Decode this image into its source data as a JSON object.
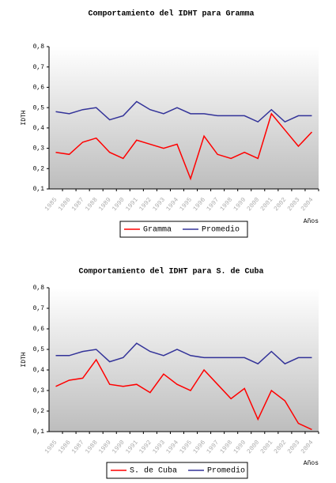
{
  "chart_data": [
    {
      "type": "line",
      "title": "Comportamiento del IDHT para Gramma",
      "y_label": "IDTH",
      "x_label": "Años",
      "categories": [
        "1985",
        "1986",
        "1987",
        "1988",
        "1989",
        "1990",
        "1991",
        "1992",
        "1993",
        "1994",
        "1995",
        "1996",
        "1997",
        "1998",
        "1999",
        "2000",
        "2001",
        "2002",
        "2003",
        "2004"
      ],
      "series": [
        {
          "name": "Gramma",
          "color": "#ff0000",
          "values": [
            0.28,
            0.27,
            0.33,
            0.35,
            0.28,
            0.25,
            0.34,
            0.32,
            0.3,
            0.32,
            0.15,
            0.36,
            0.27,
            0.25,
            0.28,
            0.25,
            0.47,
            0.39,
            0.31,
            0.38
          ]
        },
        {
          "name": "Promedio",
          "color": "#333399",
          "values": [
            0.48,
            0.47,
            0.49,
            0.5,
            0.44,
            0.46,
            0.53,
            0.49,
            0.47,
            0.5,
            0.47,
            0.47,
            0.46,
            0.46,
            0.46,
            0.43,
            0.49,
            0.43,
            0.46,
            0.46
          ]
        }
      ],
      "ylim": [
        0.1,
        0.8
      ],
      "yticks": [
        {
          "value": 0.1,
          "label": "0,1"
        },
        {
          "value": 0.2,
          "label": "0,2"
        },
        {
          "value": 0.3,
          "label": "0,3"
        },
        {
          "value": 0.4,
          "label": "0,4"
        },
        {
          "value": 0.5,
          "label": "0,5"
        },
        {
          "value": 0.6,
          "label": "0,6"
        },
        {
          "value": 0.7,
          "label": "0,7"
        },
        {
          "value": 0.8,
          "label": "0,8"
        }
      ]
    },
    {
      "type": "line",
      "title": "Comportamiento del IDHT para S. de Cuba",
      "y_label": "IDTH",
      "x_label": "Años",
      "categories": [
        "1985",
        "1986",
        "1987",
        "1988",
        "1989",
        "1990",
        "1991",
        "1992",
        "1993",
        "1994",
        "1995",
        "1996",
        "1997",
        "1998",
        "1999",
        "2000",
        "2001",
        "2002",
        "2003",
        "2004"
      ],
      "series": [
        {
          "name": "S. de Cuba",
          "color": "#ff0000",
          "values": [
            0.32,
            0.35,
            0.36,
            0.45,
            0.33,
            0.32,
            0.33,
            0.29,
            0.38,
            0.33,
            0.3,
            0.4,
            0.33,
            0.26,
            0.31,
            0.16,
            0.3,
            0.25,
            0.14,
            0.11
          ]
        },
        {
          "name": "Promedio",
          "color": "#333399",
          "values": [
            0.47,
            0.47,
            0.49,
            0.5,
            0.44,
            0.46,
            0.53,
            0.49,
            0.47,
            0.5,
            0.47,
            0.46,
            0.46,
            0.46,
            0.46,
            0.43,
            0.49,
            0.43,
            0.46,
            0.46
          ]
        }
      ],
      "ylim": [
        0.1,
        0.8
      ],
      "yticks": [
        {
          "value": 0.1,
          "label": "0,1"
        },
        {
          "value": 0.2,
          "label": "0,2"
        },
        {
          "value": 0.3,
          "label": "0,3"
        },
        {
          "value": 0.4,
          "label": "0,4"
        },
        {
          "value": 0.5,
          "label": "0,5"
        },
        {
          "value": 0.6,
          "label": "0,6"
        },
        {
          "value": 0.7,
          "label": "0,7"
        },
        {
          "value": 0.8,
          "label": "0,8"
        }
      ]
    }
  ]
}
